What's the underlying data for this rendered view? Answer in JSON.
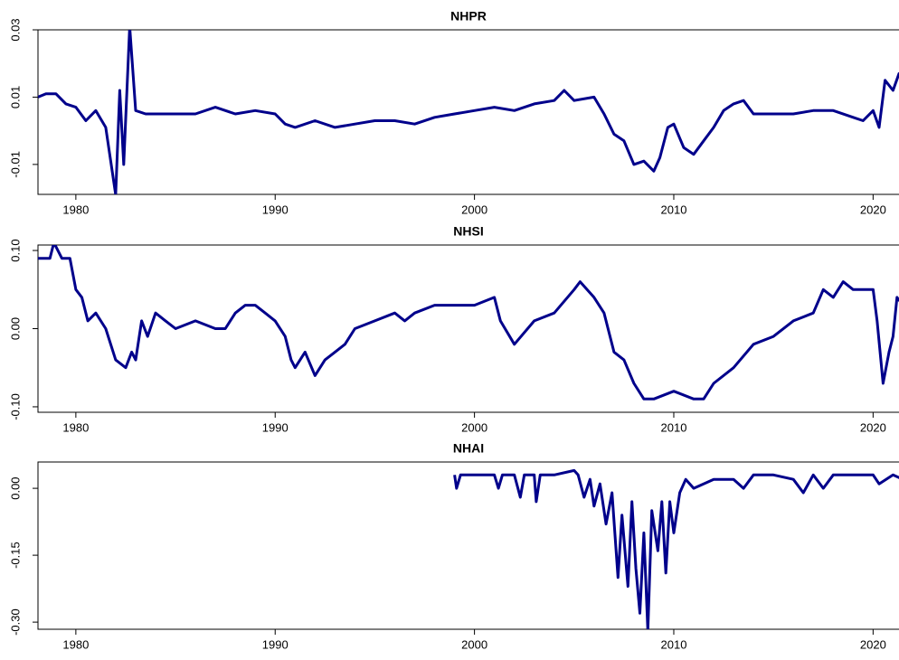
{
  "chart_data": [
    {
      "type": "line",
      "title": "NHPR",
      "x": [
        1978.1,
        1978.5,
        1979,
        1979.5,
        1980,
        1980.5,
        1981,
        1981.5,
        1982,
        1982.2,
        1982.4,
        1982.7,
        1983,
        1983.5,
        1984,
        1985,
        1986,
        1987,
        1988,
        1989,
        1990,
        1990.5,
        1991,
        1992,
        1993,
        1994,
        1995,
        1996,
        1997,
        1998,
        1999,
        2000,
        2001,
        2002,
        2003,
        2004,
        2004.5,
        2005,
        2006,
        2006.5,
        2007,
        2007.5,
        2008,
        2008.5,
        2009,
        2009.3,
        2009.7,
        2010,
        2010.5,
        2011,
        2011.5,
        2012,
        2012.5,
        2013,
        2013.5,
        2014,
        2015,
        2016,
        2017,
        2018,
        2019,
        2019.5,
        2020,
        2020.3,
        2020.6,
        2021,
        2021.3,
        2021.5
      ],
      "series": [
        {
          "color": "#00008b",
          "values": [
            0.01,
            0.011,
            0.011,
            0.008,
            0.007,
            0.003,
            0.006,
            0.001,
            -0.019,
            0.012,
            -0.01,
            0.031,
            0.006,
            0.005,
            0.005,
            0.005,
            0.005,
            0.007,
            0.005,
            0.006,
            0.005,
            0.002,
            0.001,
            0.003,
            0.001,
            0.002,
            0.003,
            0.003,
            0.002,
            0.004,
            0.005,
            0.006,
            0.007,
            0.006,
            0.008,
            0.009,
            0.012,
            0.009,
            0.01,
            0.005,
            -0.001,
            -0.003,
            -0.01,
            -0.009,
            -0.012,
            -0.008,
            0.001,
            0.002,
            -0.005,
            -0.007,
            -0.003,
            0.001,
            0.006,
            0.008,
            0.009,
            0.005,
            0.005,
            0.005,
            0.006,
            0.006,
            0.004,
            0.003,
            0.006,
            0.001,
            0.015,
            0.012,
            0.017,
            0.015
          ]
        }
      ],
      "xlim": [
        1978.1,
        2021.3
      ],
      "xticks": [
        1980,
        1990,
        2000,
        2010,
        2020
      ],
      "ylim": [
        -0.0189,
        0.03
      ],
      "yticks": [
        -0.01,
        0.01,
        0.03
      ]
    },
    {
      "type": "line",
      "title": "NHSI",
      "x": [
        1978.1,
        1978.7,
        1978.9,
        1979.3,
        1979.7,
        1980,
        1980.3,
        1980.6,
        1981,
        1981.5,
        1982,
        1982.5,
        1982.8,
        1983,
        1983.3,
        1983.6,
        1984,
        1984.5,
        1985,
        1986,
        1987,
        1987.5,
        1988,
        1988.5,
        1989,
        1989.5,
        1990,
        1990.5,
        1990.8,
        1991,
        1991.5,
        1992,
        1992.5,
        1993,
        1993.5,
        1994,
        1995,
        1996,
        1996.5,
        1997,
        1998,
        1999,
        2000,
        2001,
        2001.3,
        2002,
        2003,
        2004,
        2005,
        2005.3,
        2006,
        2006.5,
        2007,
        2007.5,
        2008,
        2008.5,
        2009,
        2010,
        2011,
        2011.5,
        2012,
        2013,
        2014,
        2015,
        2016,
        2017,
        2017.5,
        2018,
        2018.5,
        2019,
        2020,
        2020.2,
        2020.5,
        2020.8,
        2021,
        2021.2,
        2021.5
      ],
      "series": [
        {
          "color": "#00008b",
          "values": [
            0.09,
            0.09,
            0.11,
            0.09,
            0.09,
            0.05,
            0.04,
            0.01,
            0.02,
            0.0,
            -0.04,
            -0.05,
            -0.03,
            -0.04,
            0.01,
            -0.01,
            0.02,
            0.01,
            0.0,
            0.01,
            0.0,
            0.0,
            0.02,
            0.03,
            0.03,
            0.02,
            0.01,
            -0.01,
            -0.04,
            -0.05,
            -0.03,
            -0.06,
            -0.04,
            -0.03,
            -0.02,
            0.0,
            0.01,
            0.02,
            0.01,
            0.02,
            0.03,
            0.03,
            0.03,
            0.04,
            0.01,
            -0.02,
            0.01,
            0.02,
            0.05,
            0.06,
            0.04,
            0.02,
            -0.03,
            -0.04,
            -0.07,
            -0.09,
            -0.09,
            -0.08,
            -0.09,
            -0.09,
            -0.07,
            -0.05,
            -0.02,
            -0.01,
            0.01,
            0.02,
            0.05,
            0.04,
            0.06,
            0.05,
            0.05,
            0.01,
            -0.07,
            -0.03,
            -0.01,
            0.04,
            0.03
          ]
        }
      ],
      "xlim": [
        1978.1,
        2021.3
      ],
      "xticks": [
        1980,
        1990,
        2000,
        2010,
        2020
      ],
      "ylim": [
        -0.107,
        0.107
      ],
      "yticks": [
        {
          "value": -0.1,
          "label": "-0.10"
        },
        {
          "value": 0,
          "label": "0.00"
        },
        {
          "value": 0.1,
          "label": "0.10"
        }
      ]
    },
    {
      "type": "line",
      "title": "NHAI",
      "x": [
        1999.0,
        1999.1,
        1999.3,
        2000,
        2001,
        2001.2,
        2001.4,
        2002,
        2002.3,
        2002.5,
        2003,
        2003.1,
        2003.3,
        2004,
        2005,
        2005.2,
        2005.5,
        2005.8,
        2006,
        2006.3,
        2006.6,
        2006.9,
        2007.2,
        2007.4,
        2007.7,
        2007.9,
        2008.1,
        2008.3,
        2008.5,
        2008.7,
        2008.9,
        2009.2,
        2009.4,
        2009.6,
        2009.8,
        2010,
        2010.3,
        2010.6,
        2011,
        2012,
        2013,
        2013.5,
        2014,
        2015,
        2016,
        2016.5,
        2017,
        2017.5,
        2018,
        2019,
        2020,
        2020.3,
        2021,
        2021.5
      ],
      "series": [
        {
          "color": "#00008b",
          "values": [
            0.03,
            0.0,
            0.03,
            0.03,
            0.03,
            0.0,
            0.03,
            0.03,
            -0.02,
            0.03,
            0.03,
            -0.03,
            0.03,
            0.03,
            0.04,
            0.03,
            -0.02,
            0.02,
            -0.04,
            0.01,
            -0.08,
            -0.01,
            -0.2,
            -0.06,
            -0.22,
            -0.03,
            -0.18,
            -0.28,
            -0.1,
            -0.32,
            -0.05,
            -0.14,
            -0.03,
            -0.19,
            -0.03,
            -0.1,
            -0.01,
            0.02,
            0.0,
            0.02,
            0.02,
            0.0,
            0.03,
            0.03,
            0.02,
            -0.01,
            0.03,
            0.0,
            0.03,
            0.03,
            0.03,
            0.01,
            0.03,
            0.02
          ]
        }
      ],
      "xlim": [
        1978.1,
        2021.3
      ],
      "xticks": [
        1980,
        1990,
        2000,
        2010,
        2020
      ],
      "ylim": [
        -0.316,
        0.059
      ],
      "yticks": [
        {
          "value": -0.3,
          "label": "-0.30"
        },
        {
          "value": -0.15,
          "label": "-0.15"
        },
        {
          "value": 0,
          "label": "0.00"
        }
      ]
    }
  ]
}
